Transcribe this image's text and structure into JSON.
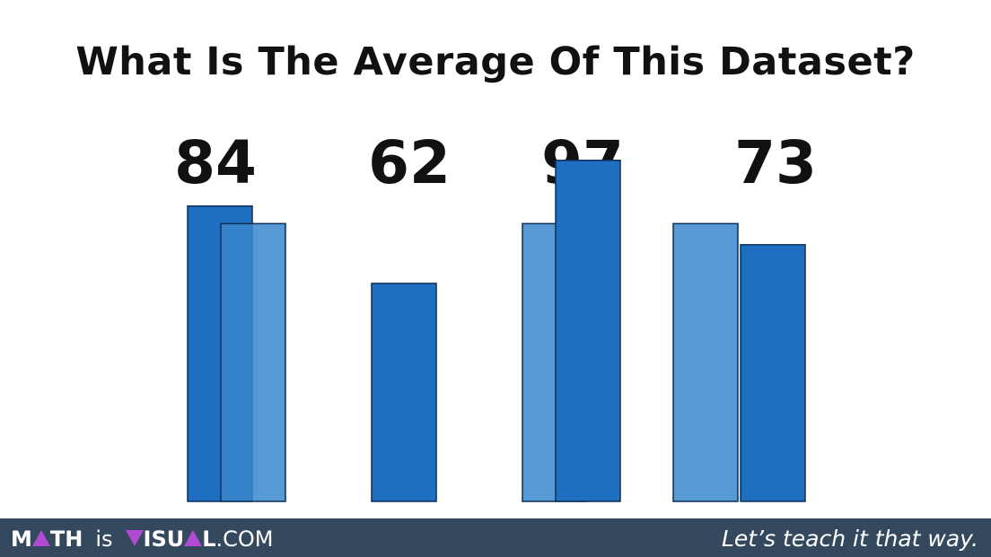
{
  "title": "What Is The Average Of This Dataset?",
  "footer": {
    "brand_m": "M",
    "brand_th": "TH",
    "brand_is": "is",
    "brand_v": "V",
    "brand_isu": "ISU",
    "brand_l": "L",
    "brand_com": ".COM",
    "tagline": "Let’s teach it that way."
  },
  "chart_data": {
    "type": "bar",
    "title": "What Is The Average Of This Dataset?",
    "categories": [
      "84",
      "62",
      "97",
      "73"
    ],
    "values": [
      84,
      62,
      97,
      73
    ],
    "average": 79,
    "ylim": [
      0,
      100
    ],
    "grid": false,
    "legend": "none",
    "colors": {
      "bar": "#1e6fc2",
      "average_bar": "#3a87cc",
      "bar_outline": "#0f2f55",
      "label": "#111111"
    }
  }
}
